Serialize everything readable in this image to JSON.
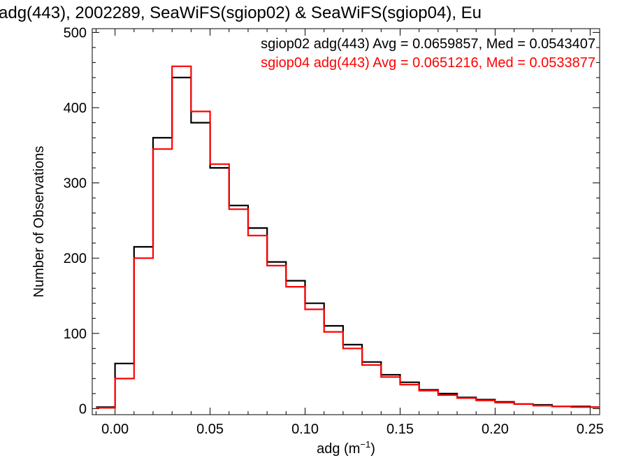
{
  "chart_data": {
    "type": "line",
    "title": "adg(443), 2002289, SeaWiFS(sgiop02) & SeaWiFS(sgiop04), Eu",
    "xlabel": "adg (m",
    "xlabel_sup": "−1",
    "xlabel_tail": ")",
    "ylabel": "Number of Observations",
    "xlim": [
      -0.012,
      0.255
    ],
    "ylim": [
      -8,
      505
    ],
    "x_ticks": [
      0.0,
      0.05,
      0.1,
      0.15,
      0.2,
      0.25
    ],
    "x_tick_labels": [
      "0.00",
      "0.05",
      "0.10",
      "0.15",
      "0.20",
      "0.25"
    ],
    "y_ticks": [
      0,
      100,
      200,
      300,
      400,
      500
    ],
    "y_tick_labels": [
      "0",
      "100",
      "200",
      "300",
      "400",
      "500"
    ],
    "grid": false,
    "legend": "top-right",
    "colors": {
      "sgiop02": "#000000",
      "sgiop04": "#ff0000"
    },
    "series": [
      {
        "key": "sgiop02",
        "legend_text": "sgiop02 adg(443) Avg = 0.0659857, Med = 0.0543407",
        "bin_width": 0.01,
        "x": [
          -0.005,
          0.005,
          0.015,
          0.025,
          0.035,
          0.045,
          0.055,
          0.065,
          0.075,
          0.085,
          0.095,
          0.105,
          0.115,
          0.125,
          0.135,
          0.145,
          0.155,
          0.165,
          0.175,
          0.185,
          0.195,
          0.205,
          0.215,
          0.225,
          0.235,
          0.245,
          0.255
        ],
        "values": [
          2,
          60,
          215,
          360,
          440,
          380,
          320,
          270,
          240,
          195,
          170,
          140,
          110,
          85,
          62,
          45,
          35,
          25,
          20,
          15,
          12,
          9,
          6,
          5,
          3,
          3,
          2
        ]
      },
      {
        "key": "sgiop04",
        "legend_text": "sgiop04 adg(443) Avg = 0.0651216, Med = 0.0533877",
        "bin_width": 0.01,
        "x": [
          -0.005,
          0.005,
          0.015,
          0.025,
          0.035,
          0.045,
          0.055,
          0.065,
          0.075,
          0.085,
          0.095,
          0.105,
          0.115,
          0.125,
          0.135,
          0.145,
          0.155,
          0.165,
          0.175,
          0.185,
          0.195,
          0.205,
          0.215,
          0.225,
          0.235,
          0.245,
          0.255
        ],
        "values": [
          1,
          40,
          200,
          345,
          455,
          395,
          325,
          265,
          230,
          190,
          162,
          132,
          102,
          80,
          58,
          42,
          32,
          24,
          18,
          14,
          11,
          8,
          6,
          4,
          3,
          2,
          2
        ]
      }
    ]
  }
}
